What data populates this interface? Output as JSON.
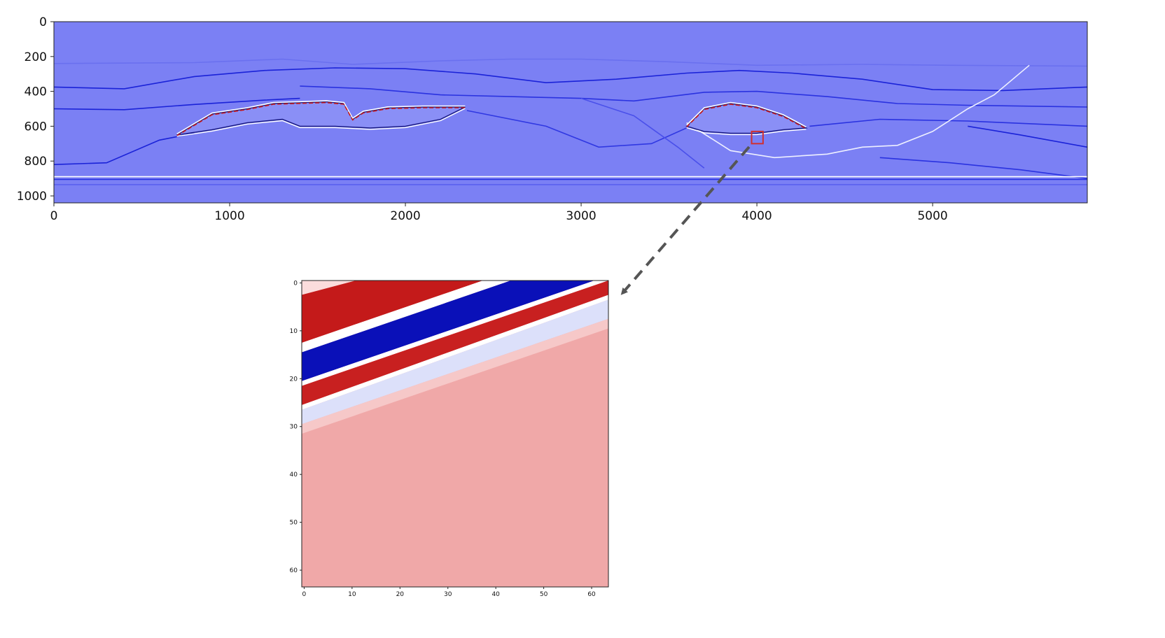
{
  "chart_data": [
    {
      "id": "main-section",
      "type": "heatmap",
      "title": "",
      "xlabel": "",
      "ylabel": "",
      "xlim": [
        0,
        5880
      ],
      "ylim": [
        1040,
        0
      ],
      "x_ticks": [
        0,
        1000,
        2000,
        3000,
        4000,
        5000
      ],
      "y_ticks": [
        0,
        200,
        400,
        600,
        800,
        1000
      ],
      "colormap": "seismic",
      "background_color": "#7b80f4",
      "grid": false,
      "highlight_box": {
        "x": [
          3970,
          4035
        ],
        "y": [
          630,
          700
        ],
        "color": "#d03030"
      },
      "horizons": [
        {
          "points": [
            [
              0,
              240
            ],
            [
              800,
              235
            ],
            [
              1300,
              215
            ],
            [
              1700,
              245
            ],
            [
              2200,
              225
            ],
            [
              2600,
              215
            ],
            [
              3000,
              215
            ],
            [
              3500,
              230
            ],
            [
              4000,
              250
            ],
            [
              4600,
              245
            ],
            [
              5100,
              250
            ],
            [
              5880,
              255
            ]
          ],
          "color": "#6a70ef"
        },
        {
          "points": [
            [
              0,
              375
            ],
            [
              400,
              385
            ],
            [
              800,
              315
            ],
            [
              1200,
              280
            ],
            [
              1600,
              265
            ],
            [
              2000,
              270
            ],
            [
              2400,
              300
            ],
            [
              2800,
              350
            ],
            [
              3200,
              330
            ],
            [
              3600,
              295
            ],
            [
              3900,
              280
            ],
            [
              4200,
              295
            ],
            [
              4600,
              330
            ],
            [
              5000,
              390
            ],
            [
              5400,
              395
            ],
            [
              5880,
              375
            ]
          ],
          "color": "#1a22d8"
        },
        {
          "points": [
            [
              0,
              500
            ],
            [
              400,
              505
            ],
            [
              800,
              475
            ],
            [
              1200,
              450
            ],
            [
              1400,
              440
            ]
          ],
          "color": "#1a22d8"
        },
        {
          "points": [
            [
              1400,
              370
            ],
            [
              1800,
              385
            ],
            [
              2200,
              420
            ],
            [
              2600,
              430
            ],
            [
              3000,
              440
            ],
            [
              3300,
              455
            ],
            [
              3700,
              405
            ],
            [
              4000,
              400
            ],
            [
              4400,
              430
            ],
            [
              4800,
              470
            ],
            [
              5200,
              480
            ],
            [
              5880,
              490
            ]
          ],
          "color": "#2a32e0"
        },
        {
          "points": [
            [
              2350,
              510
            ],
            [
              2800,
              600
            ],
            [
              3100,
              720
            ],
            [
              3400,
              700
            ],
            [
              3600,
              610
            ],
            [
              3700,
              580
            ]
          ],
          "color": "#3038e2"
        },
        {
          "points": [
            [
              4300,
              600
            ],
            [
              4700,
              560
            ],
            [
              5200,
              570
            ],
            [
              5880,
              600
            ]
          ],
          "color": "#2a32e0"
        },
        {
          "points": [
            [
              5200,
              600
            ],
            [
              5500,
              650
            ],
            [
              5880,
              720
            ]
          ],
          "color": "#1a22d8"
        },
        {
          "points": [
            [
              4700,
              780
            ],
            [
              5100,
              810
            ],
            [
              5500,
              850
            ],
            [
              5880,
              900
            ]
          ],
          "color": "#2a32e0"
        },
        {
          "points": [
            [
              0,
              820
            ],
            [
              300,
              810
            ],
            [
              600,
              680
            ],
            [
              800,
              640
            ]
          ],
          "color": "#1a22d8"
        },
        {
          "points": [
            [
              0,
              890
            ],
            [
              5880,
              890
            ]
          ],
          "color": "#ffffff"
        },
        {
          "points": [
            [
              0,
              905
            ],
            [
              5880,
              905
            ]
          ],
          "color": "#2a32e0"
        },
        {
          "points": [
            [
              0,
              935
            ],
            [
              5880,
              935
            ]
          ],
          "color": "#5a60ee"
        },
        {
          "points": [
            [
              3600,
              580
            ],
            [
              3850,
              740
            ],
            [
              4100,
              780
            ],
            [
              4400,
              760
            ],
            [
              4600,
              720
            ],
            [
              4800,
              710
            ],
            [
              5000,
              630
            ],
            [
              5200,
              500
            ],
            [
              5350,
              420
            ],
            [
              5550,
              250
            ]
          ],
          "color": "#eef0ff"
        },
        {
          "points": [
            [
              3000,
              440
            ],
            [
              3300,
              540
            ],
            [
              3550,
              720
            ],
            [
              3700,
              840
            ]
          ],
          "color": "#4a50ea"
        }
      ],
      "bodies": [
        {
          "top": [
            [
              700,
              650
            ],
            [
              900,
              530
            ],
            [
              1100,
              500
            ],
            [
              1250,
              470
            ],
            [
              1400,
              465
            ],
            [
              1550,
              460
            ],
            [
              1650,
              470
            ],
            [
              1700,
              560
            ],
            [
              1760,
              520
            ],
            [
              1900,
              495
            ],
            [
              2100,
              490
            ],
            [
              2340,
              490
            ]
          ],
          "base": [
            [
              2340,
              490
            ],
            [
              2200,
              560
            ],
            [
              2000,
              600
            ],
            [
              1800,
              610
            ],
            [
              1600,
              600
            ],
            [
              1400,
              600
            ],
            [
              1300,
              560
            ],
            [
              1100,
              580
            ],
            [
              900,
              620
            ],
            [
              700,
              650
            ]
          ],
          "fill": "#8a8ff6",
          "edge_color": "#1a1a80"
        },
        {
          "top": [
            [
              3600,
              600
            ],
            [
              3700,
              500
            ],
            [
              3850,
              470
            ],
            [
              4000,
              490
            ],
            [
              4150,
              540
            ],
            [
              4280,
              610
            ]
          ],
          "base": [
            [
              4280,
              610
            ],
            [
              4150,
              620
            ],
            [
              4000,
              640
            ],
            [
              3850,
              640
            ],
            [
              3700,
              630
            ],
            [
              3600,
              600
            ]
          ],
          "fill": "#8a8ff6",
          "edge_color": "#1a1a80"
        }
      ]
    },
    {
      "id": "zoom-patch",
      "type": "heatmap",
      "title": "",
      "xlabel": "",
      "ylabel": "",
      "xlim": [
        0,
        64
      ],
      "ylim": [
        64,
        0
      ],
      "x_ticks": [
        0,
        10,
        20,
        30,
        40,
        50,
        60
      ],
      "y_ticks": [
        0,
        10,
        20,
        30,
        40,
        50,
        60
      ],
      "colormap": "seismic",
      "grid": false,
      "background_color": "#f0a8a8",
      "bands": [
        {
          "from": "#ffffff",
          "to": "#ffffff",
          "y_at_x0": [
            -1,
            3
          ],
          "color": "#fbdcdc"
        },
        {
          "y_at_x0": [
            3,
            13
          ],
          "y_at_x63": [
            -14,
            -9
          ],
          "color": "#c41a1a"
        },
        {
          "y_at_x0": [
            13,
            15
          ],
          "y_at_x63": [
            -9,
            -7
          ],
          "color": "#ffffff"
        },
        {
          "y_at_x0": [
            15,
            21
          ],
          "y_at_x63": [
            -7,
            -1
          ],
          "color": "#0a10b8"
        },
        {
          "y_at_x0": [
            21,
            22
          ],
          "y_at_x63": [
            -1,
            0
          ],
          "color": "#ffffff"
        },
        {
          "y_at_x0": [
            22,
            26
          ],
          "y_at_x63": [
            0,
            3
          ],
          "color": "#c82020"
        },
        {
          "y_at_x0": [
            26,
            27
          ],
          "y_at_x63": [
            3,
            4
          ],
          "color": "#ffffff"
        },
        {
          "y_at_x0": [
            27,
            30
          ],
          "y_at_x63": [
            4,
            8
          ],
          "color": "#dce0fa"
        },
        {
          "y_at_x0": [
            30,
            32
          ],
          "y_at_x63": [
            8,
            10
          ],
          "color": "#f6c8c8"
        }
      ]
    }
  ],
  "zoom_arrow": {
    "color": "#555555",
    "style": "dashed"
  }
}
